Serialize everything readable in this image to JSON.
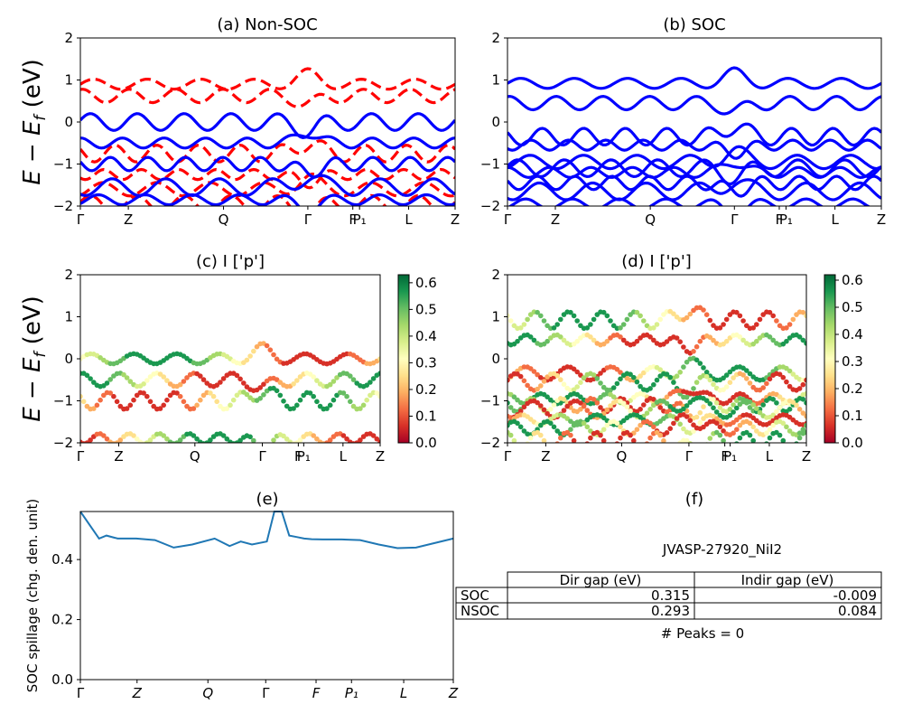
{
  "chart_data": [
    {
      "panel": "a",
      "type": "line",
      "title": "(a) Non-SOC",
      "ylabel": "$E - E_f$ (eV)",
      "ylim": [
        -2,
        2
      ],
      "yticks": [
        "2",
        "1",
        "0",
        "−1",
        "−2"
      ],
      "xtick_labels": [
        "Γ",
        "Z",
        "Q",
        "Γ",
        "F",
        "P₁",
        "L",
        "Z"
      ],
      "series": [
        {
          "style": "dashed",
          "color": "#ff0000",
          "bands": [
            0.9,
            0.62,
            -0.75,
            -1.25,
            -1.6,
            -1.95
          ]
        },
        {
          "style": "solid",
          "color": "#0000ff",
          "bands": [
            0.0,
            -0.5,
            -1.0,
            -1.55,
            -1.85
          ]
        }
      ]
    },
    {
      "panel": "b",
      "type": "line",
      "title": "(b) SOC",
      "ylim": [
        -2,
        2
      ],
      "yticks": [
        "2",
        "1",
        "0",
        "−1",
        "−2"
      ],
      "xtick_labels": [
        "Γ",
        "Z",
        "Q",
        "Γ",
        "F",
        "P₁",
        "L",
        "Z"
      ],
      "series": [
        {
          "style": "solid",
          "color": "#0000ff",
          "bands": [
            0.92,
            0.45,
            -0.35,
            -0.55,
            -0.95,
            -1.1,
            -1.2,
            -1.45,
            -1.65,
            -1.95
          ]
        }
      ]
    },
    {
      "panel": "c",
      "type": "scatter",
      "title": "(c)  I ['p']",
      "ylabel": "$E - E_f$ (eV)",
      "ylim": [
        -2,
        2
      ],
      "yticks": [
        "2",
        "1",
        "0",
        "−1",
        "−2"
      ],
      "xtick_labels": [
        "Γ",
        "Z",
        "Q",
        "Γ",
        "F",
        "P₁",
        "L",
        "Z"
      ],
      "colorbar": {
        "min": 0.0,
        "max": 0.63,
        "ticks": [
          "0.6",
          "0.5",
          "0.4",
          "0.3",
          "0.2",
          "0.1",
          "0.0"
        ]
      },
      "bands": [
        0.0,
        -0.5,
        -1.0,
        -1.9
      ]
    },
    {
      "panel": "d",
      "type": "scatter",
      "title": "(d) I ['p']",
      "ylim": [
        -2,
        2
      ],
      "yticks": [
        "2",
        "1",
        "0",
        "−1",
        "−2"
      ],
      "xtick_labels": [
        "Γ",
        "Z",
        "Q",
        "Γ",
        "F",
        "P₁",
        "L",
        "Z"
      ],
      "colorbar": {
        "min": 0.0,
        "max": 0.62,
        "ticks": [
          "0.6",
          "0.5",
          "0.4",
          "0.3",
          "0.2",
          "0.1",
          "0.0"
        ]
      },
      "bands": [
        0.92,
        0.45,
        -0.35,
        -0.55,
        -0.95,
        -1.1,
        -1.2,
        -1.45,
        -1.65,
        -1.95
      ]
    },
    {
      "panel": "e",
      "type": "line",
      "title": "(e)",
      "ylabel": "SOC spillage (chg. den. unit)",
      "ylim": [
        0.0,
        0.56
      ],
      "yticks": [
        "0.4",
        "0.2",
        "0.0"
      ],
      "xtick_labels": [
        "Γ",
        "Z",
        "Q",
        "Γ",
        "F",
        "P₁",
        "L",
        "Z"
      ],
      "x": [
        0,
        0.05,
        0.07,
        0.1,
        0.15,
        0.2,
        0.25,
        0.3,
        0.36,
        0.4,
        0.43,
        0.46,
        0.5,
        0.52,
        0.54,
        0.56,
        0.58,
        0.6,
        0.62,
        0.65,
        0.7,
        0.75,
        0.8,
        0.85,
        0.9,
        0.95,
        1.0
      ],
      "values": [
        0.56,
        0.47,
        0.48,
        0.47,
        0.47,
        0.465,
        0.44,
        0.45,
        0.47,
        0.445,
        0.46,
        0.45,
        0.46,
        0.56,
        0.56,
        0.48,
        0.475,
        0.47,
        0.468,
        0.467,
        0.467,
        0.465,
        0.45,
        0.438,
        0.44,
        0.455,
        0.47
      ]
    }
  ],
  "panel_f": {
    "title": "(f)",
    "material": "JVASP-27920_NiI2",
    "table": {
      "headers": [
        "Dir gap (eV)",
        "Indir gap (eV)"
      ],
      "rows": [
        {
          "label": "SOC",
          "dir": "0.315",
          "indir": "-0.009"
        },
        {
          "label": "NSOC",
          "dir": "0.293",
          "indir": "0.084"
        }
      ]
    },
    "peaks": "# Peaks = 0"
  }
}
